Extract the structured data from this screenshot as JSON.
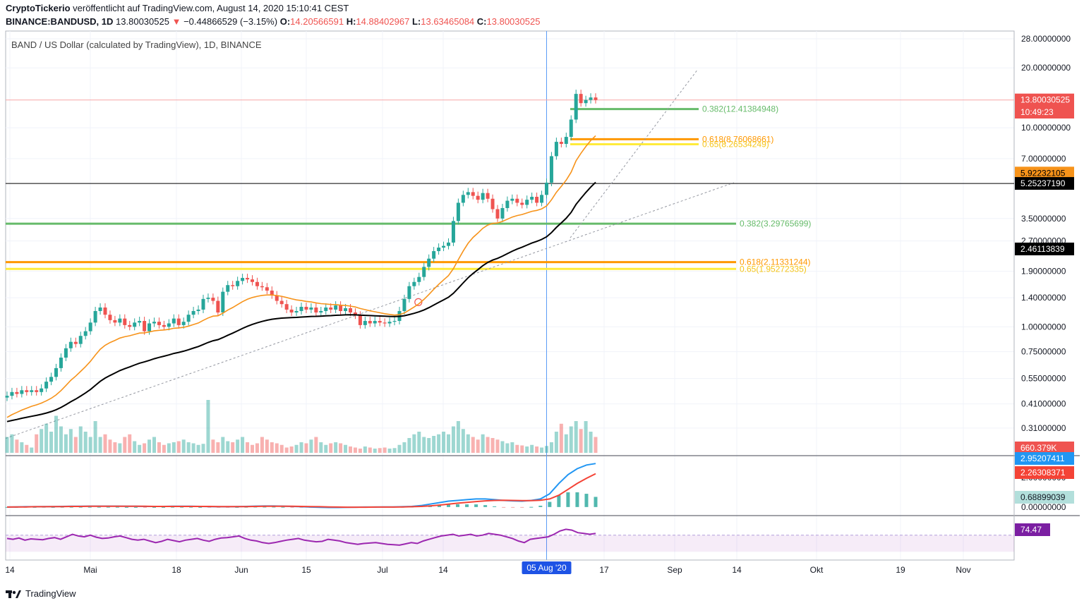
{
  "header": {
    "line1_author": "CryptoTickerio",
    "line1_rest": "veröffentlicht auf TradingView.com, August 14, 2020 15:10:41 CEST",
    "symbol": "BINANCE:BANDUSD, 1D",
    "last": "13.80030525",
    "arrow": "▼",
    "change": "−0.44866529 (−3.15%)",
    "o_label": "O:",
    "o": "14.20566591",
    "h_label": "H:",
    "h": "14.88402967",
    "l_label": "L:",
    "l": "13.63465084",
    "c_label": "C:",
    "c": "13.80030525"
  },
  "chart_label": "BAND / US Dollar (calculated by TradingView), 1D, BINANCE",
  "brand": "TradingView",
  "colors": {
    "up": "#26a69a",
    "down": "#ef5350",
    "ma50": "#f7931a",
    "ma200": "#000000",
    "fib382": "#66bb6a",
    "fib618": "#ff9800",
    "fib65": "#ffeb3b",
    "macd": "#2196f3",
    "signal": "#f44336",
    "rsi": "#9c27b0"
  },
  "chart_data": {
    "type": "candlestick",
    "title": "BAND / US Dollar (calculated by TradingView), 1D, BINANCE",
    "y_scale": "log",
    "y_ticks": [
      "28.00000000",
      "20.00000000",
      "10.00000000",
      "7.00000000",
      "3.50000000",
      "2.70000000",
      "1.90000000",
      "1.40000000",
      "1.00000000",
      "0.75000000",
      "0.55000000",
      "0.41000000",
      "0.31000000"
    ],
    "x_ticks": [
      "14",
      "Mai",
      "18",
      "Jun",
      "15",
      "Jul",
      "14",
      "05 Aug '20",
      "17",
      "Sep",
      "14",
      "Okt",
      "19",
      "Nov"
    ],
    "closes": [
      0.45,
      0.47,
      0.46,
      0.48,
      0.47,
      0.48,
      0.47,
      0.49,
      0.53,
      0.56,
      0.62,
      0.7,
      0.78,
      0.84,
      0.82,
      0.9,
      0.95,
      1.05,
      1.2,
      1.25,
      1.15,
      1.08,
      1.05,
      1.1,
      1.02,
      1.0,
      1.05,
      1.07,
      0.95,
      1.04,
      1.06,
      1.02,
      1.0,
      1.04,
      1.1,
      1.02,
      1.06,
      1.15,
      1.2,
      1.22,
      1.38,
      1.4,
      1.35,
      1.18,
      1.5,
      1.62,
      1.6,
      1.7,
      1.76,
      1.73,
      1.68,
      1.6,
      1.58,
      1.52,
      1.44,
      1.35,
      1.3,
      1.22,
      1.18,
      1.2,
      1.26,
      1.22,
      1.25,
      1.18,
      1.2,
      1.25,
      1.22,
      1.28,
      1.2,
      1.24,
      1.18,
      1.14,
      1.02,
      1.07,
      1.04,
      1.07,
      1.05,
      1.04,
      1.06,
      1.07,
      1.2,
      1.38,
      1.6,
      1.68,
      1.78,
      2.0,
      2.2,
      2.4,
      2.5,
      2.55,
      2.65,
      3.4,
      4.2,
      4.6,
      4.75,
      4.55,
      4.35,
      4.7,
      4.4,
      3.9,
      3.5,
      3.95,
      4.3,
      4.4,
      4.2,
      4.1,
      4.35,
      4.5,
      4.2,
      4.6,
      5.3,
      7.2,
      8.5,
      8.3,
      9.0,
      11.0,
      14.8,
      13.3,
      13.8,
      14.2,
      13.8
    ],
    "volumes": [
      0.3,
      0.35,
      0.25,
      0.2,
      0.15,
      0.1,
      0.35,
      0.45,
      0.55,
      0.4,
      0.7,
      0.5,
      0.35,
      0.45,
      0.3,
      0.5,
      0.4,
      0.3,
      0.6,
      0.3,
      0.35,
      0.25,
      0.2,
      0.18,
      0.3,
      0.35,
      0.22,
      0.15,
      0.18,
      0.25,
      0.3,
      0.2,
      0.15,
      0.18,
      0.2,
      0.22,
      0.25,
      0.2,
      0.18,
      0.15,
      0.17,
      1.0,
      0.25,
      0.2,
      0.3,
      0.22,
      0.2,
      0.25,
      0.3,
      0.2,
      0.15,
      0.18,
      0.3,
      0.25,
      0.2,
      0.18,
      0.15,
      0.1,
      0.12,
      0.15,
      0.2,
      0.18,
      0.25,
      0.3,
      0.2,
      0.15,
      0.18,
      0.2,
      0.18,
      0.15,
      0.12,
      0.1,
      0.08,
      0.12,
      0.1,
      0.08,
      0.09,
      0.1,
      0.08,
      0.09,
      0.15,
      0.2,
      0.28,
      0.35,
      0.4,
      0.3,
      0.28,
      0.32,
      0.35,
      0.4,
      0.35,
      0.5,
      0.6,
      0.45,
      0.35,
      0.3,
      0.25,
      0.35,
      0.3,
      0.28,
      0.25,
      0.22,
      0.18,
      0.2,
      0.15,
      0.14,
      0.12,
      0.15,
      0.12,
      0.1,
      0.13,
      0.2,
      0.4,
      0.55,
      0.35,
      0.5,
      0.6,
      0.45,
      0.6,
      0.4,
      0.3
    ],
    "ma50_start": 0.34,
    "ma200_start": 0.33,
    "fib_levels": [
      {
        "label": "0.382(12.41384948)",
        "value": 12.41384948,
        "color": "#66bb6a"
      },
      {
        "label": "0.618(8.76068661)",
        "value": 8.76068661,
        "color": "#ff9800"
      },
      {
        "label": "0.65(8.26534249)",
        "value": 8.26534249,
        "color": "#ffeb3b"
      },
      {
        "label": "0.382(3.29765699)",
        "value": 3.29765699,
        "color": "#66bb6a"
      },
      {
        "label": "0.618(2.11331244)",
        "value": 2.11331244,
        "color": "#ff9800"
      },
      {
        "label": "0.65(1.95272335)",
        "value": 1.95272335,
        "color": "#ffeb3b"
      }
    ],
    "horizontal_line": 5.2523719,
    "price_badges": [
      {
        "label": "13.80030525",
        "value": 13.80030525,
        "bg": "#ef5350",
        "fg": "#ffffff"
      },
      {
        "label": "10:49:23",
        "value": 12.35,
        "bg": "#ef5350",
        "fg": "#ffffff"
      },
      {
        "label": "5.92232105",
        "value": 5.92232105,
        "bg": "#f7931a",
        "fg": "#000000"
      },
      {
        "label": "5.25237190",
        "value": 5.2523719,
        "bg": "#000000",
        "fg": "#ffffff"
      },
      {
        "label": "2.46113839",
        "value": 2.46113839,
        "bg": "#000000",
        "fg": "#ffffff"
      },
      {
        "label": "660.379K",
        "value": 0.272,
        "bg": "#ef5350",
        "fg": "#ffffff"
      }
    ],
    "macd": {
      "ticks": [
        "2.00000000",
        "0.00000000"
      ],
      "macd_values": [
        0,
        0.01,
        0.02,
        0.02,
        0.03,
        0.03,
        0.04,
        0.05,
        0.05,
        0.06,
        0.06,
        0.06,
        0.06,
        0.05,
        0.05,
        0.04,
        0.04,
        0.04,
        0.05,
        0.05,
        0.05,
        0.04,
        0.03,
        0.02,
        0.02,
        0.03,
        0.04,
        0.06,
        0.07,
        0.07,
        0.06,
        0.04,
        0.02,
        0.0,
        -0.02,
        -0.03,
        -0.03,
        -0.02,
        -0.01,
        0.0,
        0.0,
        0.01,
        0.01,
        0.02,
        0.04,
        0.1,
        0.2,
        0.3,
        0.4,
        0.45,
        0.5,
        0.55,
        0.55,
        0.5,
        0.45,
        0.42,
        0.4,
        0.45,
        0.55,
        0.9,
        1.6,
        2.2,
        2.6,
        2.85,
        2.95
      ],
      "signal_values": [
        0,
        0.01,
        0.01,
        0.02,
        0.02,
        0.03,
        0.03,
        0.04,
        0.04,
        0.05,
        0.05,
        0.05,
        0.05,
        0.05,
        0.05,
        0.05,
        0.04,
        0.04,
        0.04,
        0.04,
        0.04,
        0.04,
        0.04,
        0.03,
        0.03,
        0.03,
        0.03,
        0.04,
        0.05,
        0.05,
        0.05,
        0.05,
        0.04,
        0.03,
        0.02,
        0.01,
        0.0,
        -0.01,
        -0.01,
        -0.01,
        0.0,
        0.0,
        0.0,
        0.01,
        0.02,
        0.04,
        0.08,
        0.13,
        0.2,
        0.26,
        0.32,
        0.37,
        0.42,
        0.45,
        0.46,
        0.45,
        0.44,
        0.44,
        0.46,
        0.55,
        0.8,
        1.2,
        1.6,
        1.95,
        2.26
      ],
      "macd_badge": "2.95207411",
      "signal_badge": "2.26308371",
      "hist_badge": "0.68899039"
    },
    "rsi": {
      "value_badge": "74.47",
      "values": [
        62,
        60,
        63,
        58,
        61,
        60,
        59,
        62,
        64,
        60,
        66,
        72,
        68,
        66,
        70,
        65,
        62,
        63,
        66,
        68,
        64,
        60,
        58,
        60,
        56,
        52,
        55,
        60,
        57,
        54,
        58,
        60,
        62,
        58,
        55,
        60,
        63,
        64,
        66,
        68,
        62,
        58,
        56,
        52,
        50,
        52,
        55,
        58,
        60,
        62,
        58,
        56,
        54,
        55,
        60,
        58,
        56,
        52,
        50,
        48,
        50,
        51,
        52,
        50,
        48,
        47,
        46,
        49,
        52,
        50,
        56,
        60,
        64,
        68,
        70,
        72,
        68,
        70,
        72,
        68,
        70,
        74,
        72,
        70,
        66,
        62,
        56,
        52,
        60,
        62,
        64,
        66,
        72,
        80,
        84,
        82,
        76,
        74,
        72,
        74
      ]
    }
  }
}
